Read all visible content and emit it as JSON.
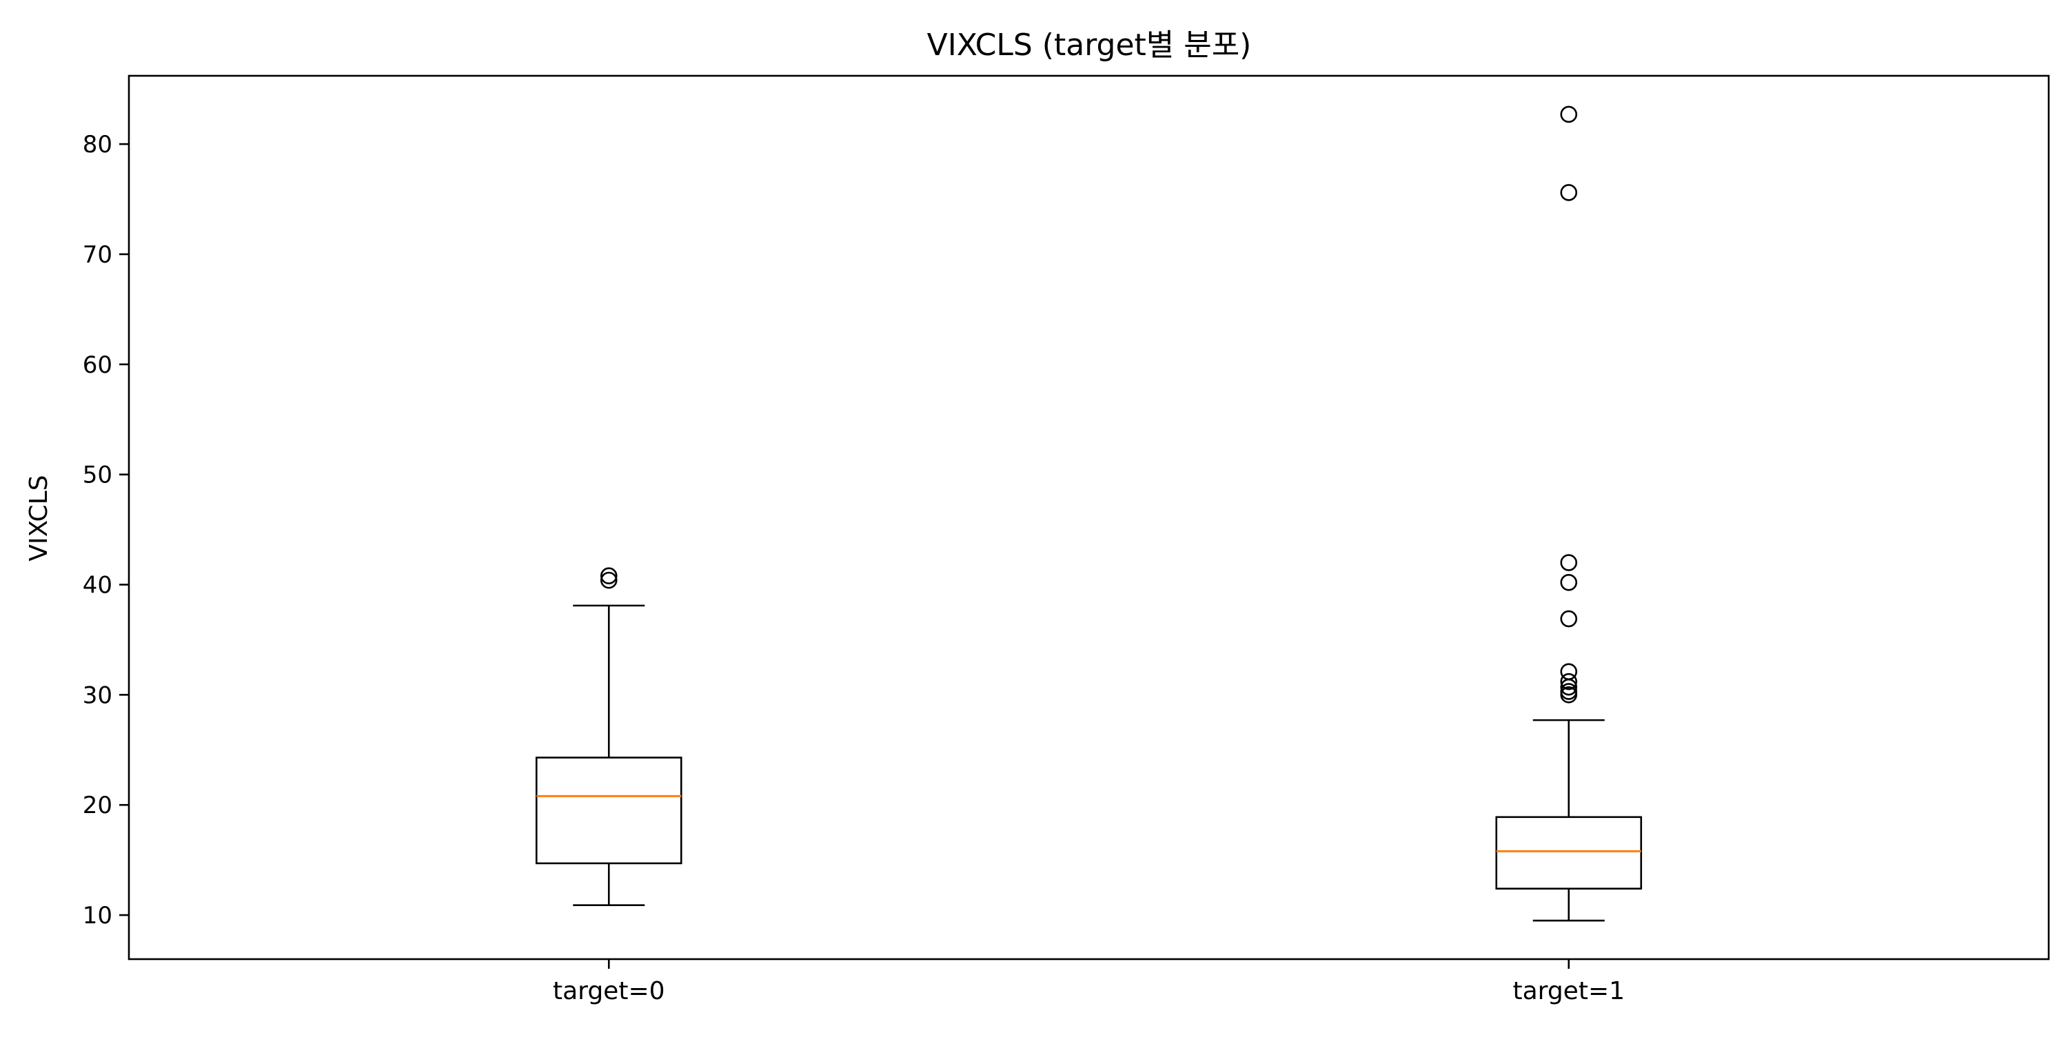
{
  "chart_data": {
    "type": "boxplot",
    "title": "VIXCLS (target별 분포)",
    "ylabel": "VIXCLS",
    "xlabel": "",
    "ylim": [
      6,
      86.2
    ],
    "yticks": [
      10,
      20,
      30,
      40,
      50,
      60,
      70,
      80
    ],
    "grid": false,
    "categories": [
      "target=0",
      "target=1"
    ],
    "boxes": [
      {
        "label": "target=0",
        "whisker_low": 10.9,
        "q1": 14.7,
        "median": 20.8,
        "q3": 24.3,
        "whisker_high": 38.1,
        "outliers": [
          40.4,
          40.8
        ]
      },
      {
        "label": "target=1",
        "whisker_low": 9.5,
        "q1": 12.4,
        "median": 15.8,
        "q3": 18.9,
        "whisker_high": 27.7,
        "outliers": [
          30.0,
          30.3,
          30.7,
          31.2,
          32.1,
          36.9,
          40.2,
          42.0,
          75.6,
          82.7
        ]
      }
    ],
    "colors": {
      "box": "#000000",
      "median": "#ff7f0e",
      "axes": "#000000"
    }
  }
}
